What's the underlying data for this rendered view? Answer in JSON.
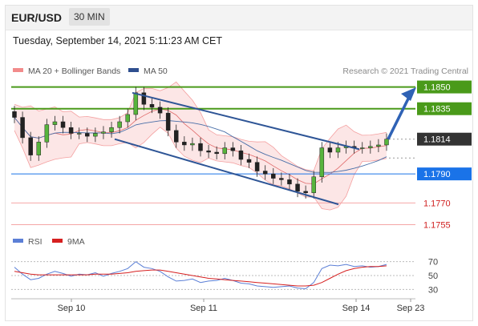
{
  "header": {
    "symbol": "EUR/USD",
    "timeframe": "30 MIN",
    "datetime": "Tuesday, September 14, 2021 5:11:23 AM CET"
  },
  "chart_data": [
    {
      "type": "candlestick",
      "title": "",
      "legend": [
        {
          "name": "MA 20 + Bollinger Bands",
          "color": "#f28b8b"
        },
        {
          "name": "MA 50",
          "color": "#2f4f8f"
        }
      ],
      "credit": "Research © 2021 Trading Central",
      "x_tick_labels": [
        "Sep 10",
        "Sep 11",
        "Sep 14",
        "Sep 23"
      ],
      "price_levels": [
        {
          "label": "1.1850",
          "value": 1.185,
          "kind": "resistance",
          "color": "#4a9a1a"
        },
        {
          "label": "1.1835",
          "value": 1.1835,
          "kind": "resistance",
          "color": "#4a9a1a"
        },
        {
          "label": "1.1814",
          "value": 1.1814,
          "kind": "current",
          "color": "#333333"
        },
        {
          "label": "1.1790",
          "value": 1.179,
          "kind": "pivot",
          "color": "#1a73e8"
        },
        {
          "label": "1.1770",
          "value": 1.177,
          "kind": "support",
          "color": "#d02020"
        },
        {
          "label": "1.1755",
          "value": 1.1755,
          "kind": "support",
          "color": "#d02020"
        }
      ],
      "ylim": [
        1.175,
        1.186
      ],
      "close_series": [
        1.1829,
        1.1815,
        1.1803,
        1.1812,
        1.1824,
        1.1826,
        1.1822,
        1.1818,
        1.1818,
        1.1816,
        1.1818,
        1.1819,
        1.1822,
        1.1826,
        1.1831,
        1.1846,
        1.1838,
        1.1836,
        1.1832,
        1.182,
        1.1812,
        1.181,
        1.1811,
        1.1806,
        1.1805,
        1.1804,
        1.1808,
        1.1806,
        1.18,
        1.1798,
        1.1792,
        1.179,
        1.1787,
        1.1786,
        1.1783,
        1.1778,
        1.1777,
        1.1788,
        1.1808,
        1.1805,
        1.1808,
        1.1809,
        1.1808,
        1.1808,
        1.1809,
        1.181,
        1.1814
      ]
    },
    {
      "type": "line",
      "title": "",
      "legend": [
        {
          "name": "RSI",
          "color": "#5b7fd6"
        },
        {
          "name": "9MA",
          "color": "#d62020"
        }
      ],
      "y_tick_labels": [
        "70",
        "50",
        "30"
      ],
      "ylim": [
        20,
        80
      ],
      "series": [
        {
          "name": "RSI",
          "values": [
            62,
            52,
            44,
            46,
            52,
            56,
            53,
            49,
            52,
            51,
            54,
            49,
            53,
            56,
            60,
            70,
            62,
            60,
            56,
            48,
            42,
            43,
            45,
            40,
            42,
            43,
            46,
            43,
            39,
            38,
            35,
            34,
            33,
            34,
            35,
            32,
            31,
            40,
            60,
            65,
            64,
            66,
            63,
            64,
            62,
            63,
            66
          ]
        },
        {
          "name": "9MA",
          "values": [
            56,
            54,
            52,
            51,
            51,
            51,
            51,
            51,
            51,
            51,
            52,
            52,
            52,
            53,
            54,
            56,
            57,
            58,
            58,
            56,
            54,
            52,
            50,
            48,
            46,
            45,
            44,
            43,
            42,
            41,
            40,
            39,
            38,
            37,
            36,
            35,
            35,
            36,
            40,
            46,
            52,
            57,
            60,
            62,
            63,
            63,
            64
          ]
        }
      ]
    }
  ]
}
